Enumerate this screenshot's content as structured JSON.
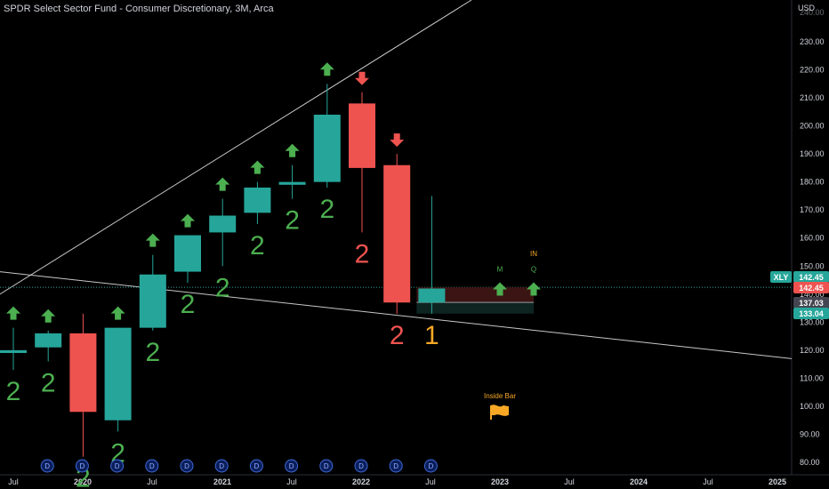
{
  "header": {
    "title": "SPDR Select Sector Fund - Consumer Discretionary, 3M, Arca",
    "currency": "USD"
  },
  "colors": {
    "up": "#26a69a",
    "down": "#ef5350",
    "signal_up": "#4caf50",
    "signal_down": "#ef5350",
    "background": "#000000",
    "text": "#d1d4dc",
    "strat_label_up": "#4caf50",
    "strat_label_down": "#ef5350",
    "strat_label_inside": "#f9a825"
  },
  "chart_data": {
    "type": "candlestick",
    "symbol": "XLY",
    "interval": "3M",
    "y_axis": {
      "ticks": [
        80,
        90,
        100,
        110,
        120,
        130,
        140,
        150,
        160,
        170,
        180,
        190,
        200,
        210,
        220,
        230
      ],
      "range": [
        78,
        240
      ]
    },
    "x_axis": {
      "labels": [
        "Jul",
        "2020",
        "Jul",
        "2021",
        "Jul",
        "2022",
        "Jul",
        "2023",
        "Jul",
        "2024",
        "Jul",
        "2025"
      ]
    },
    "candles": [
      {
        "period": "2019-Q3",
        "open": 119,
        "high": 128,
        "low": 113,
        "close": 120
      },
      {
        "period": "2019-Q4",
        "open": 121,
        "high": 127,
        "low": 116,
        "close": 126
      },
      {
        "period": "2020-Q1",
        "open": 126,
        "high": 133,
        "low": 82,
        "close": 98
      },
      {
        "period": "2020-Q2",
        "open": 95,
        "high": 128,
        "low": 91,
        "close": 128
      },
      {
        "period": "2020-Q3",
        "open": 128,
        "high": 154,
        "low": 127,
        "close": 147
      },
      {
        "period": "2020-Q4",
        "open": 148,
        "high": 161,
        "low": 144,
        "close": 161
      },
      {
        "period": "2021-Q1",
        "open": 162,
        "high": 174,
        "low": 150,
        "close": 168
      },
      {
        "period": "2021-Q2",
        "open": 169,
        "high": 180,
        "low": 165,
        "close": 178
      },
      {
        "period": "2021-Q3",
        "open": 179,
        "high": 186,
        "low": 174,
        "close": 180
      },
      {
        "period": "2021-Q4",
        "open": 180,
        "high": 215,
        "low": 178,
        "close": 204
      },
      {
        "period": "2022-Q1",
        "open": 208,
        "high": 212,
        "low": 162,
        "close": 185
      },
      {
        "period": "2022-Q2",
        "open": 186,
        "high": 190,
        "low": 133,
        "close": 137
      },
      {
        "period": "2022-Q3",
        "open": 137,
        "high": 175,
        "low": 133,
        "close": 142
      }
    ],
    "strat_labels": [
      {
        "period": "2019-Q3",
        "label": "2",
        "direction": "up"
      },
      {
        "period": "2019-Q4",
        "label": "2",
        "direction": "up"
      },
      {
        "period": "2020-Q1",
        "label": "2",
        "direction": "up"
      },
      {
        "period": "2020-Q2",
        "label": "2",
        "direction": "up"
      },
      {
        "period": "2020-Q3",
        "label": "2",
        "direction": "up"
      },
      {
        "period": "2020-Q4",
        "label": "2",
        "direction": "up"
      },
      {
        "period": "2021-Q1",
        "label": "2",
        "direction": "up"
      },
      {
        "period": "2021-Q2",
        "label": "2",
        "direction": "up"
      },
      {
        "period": "2021-Q3",
        "label": "2",
        "direction": "up"
      },
      {
        "period": "2021-Q4",
        "label": "2",
        "direction": "up"
      },
      {
        "period": "2022-Q1",
        "label": "2",
        "direction": "down"
      },
      {
        "period": "2022-Q2",
        "label": "2",
        "direction": "down"
      },
      {
        "period": "2022-Q3",
        "label": "1",
        "direction": "inside"
      }
    ],
    "signal_arrows": [
      {
        "period": "2019-Q3",
        "direction": "up"
      },
      {
        "period": "2019-Q4",
        "direction": "up"
      },
      {
        "period": "2020-Q2",
        "direction": "up"
      },
      {
        "period": "2020-Q3",
        "direction": "up"
      },
      {
        "period": "2020-Q4",
        "direction": "up"
      },
      {
        "period": "2021-Q1",
        "direction": "up"
      },
      {
        "period": "2021-Q2",
        "direction": "up"
      },
      {
        "period": "2021-Q3",
        "direction": "up"
      },
      {
        "period": "2021-Q4",
        "direction": "up"
      },
      {
        "period": "2022-Q1",
        "direction": "down"
      },
      {
        "period": "2022-Q2",
        "direction": "down"
      }
    ],
    "projected_arrows": [
      {
        "label": "M",
        "price": 142
      },
      {
        "label": "Q",
        "price": 142
      }
    ],
    "label_in": "IN",
    "inside_bar_label": "Inside Bar",
    "dividend_markers": 12,
    "dividend_label": "D",
    "price_labels": [
      {
        "text": "XLY",
        "price": 142.45,
        "kind": "symbol"
      },
      {
        "text": "142.45",
        "price": 142.45,
        "kind": "last_up"
      },
      {
        "text": "142.45",
        "price": 141.2,
        "kind": "last_down"
      },
      {
        "text": "137.03",
        "price": 137.03,
        "kind": "range_low"
      },
      {
        "text": "133.04",
        "price": 133.04,
        "kind": "support"
      }
    ],
    "top_partial_tick": "240.00",
    "last_price": 142.45,
    "trendlines": [
      {
        "from": {
          "period": "2019-Q3",
          "price": 139
        },
        "to": {
          "period": "2022-Q3",
          "price": 240
        }
      },
      {
        "from": {
          "period": "2019-Q3",
          "price": 148
        },
        "to": {
          "period": "2025-Q1",
          "price": 116
        }
      }
    ]
  }
}
